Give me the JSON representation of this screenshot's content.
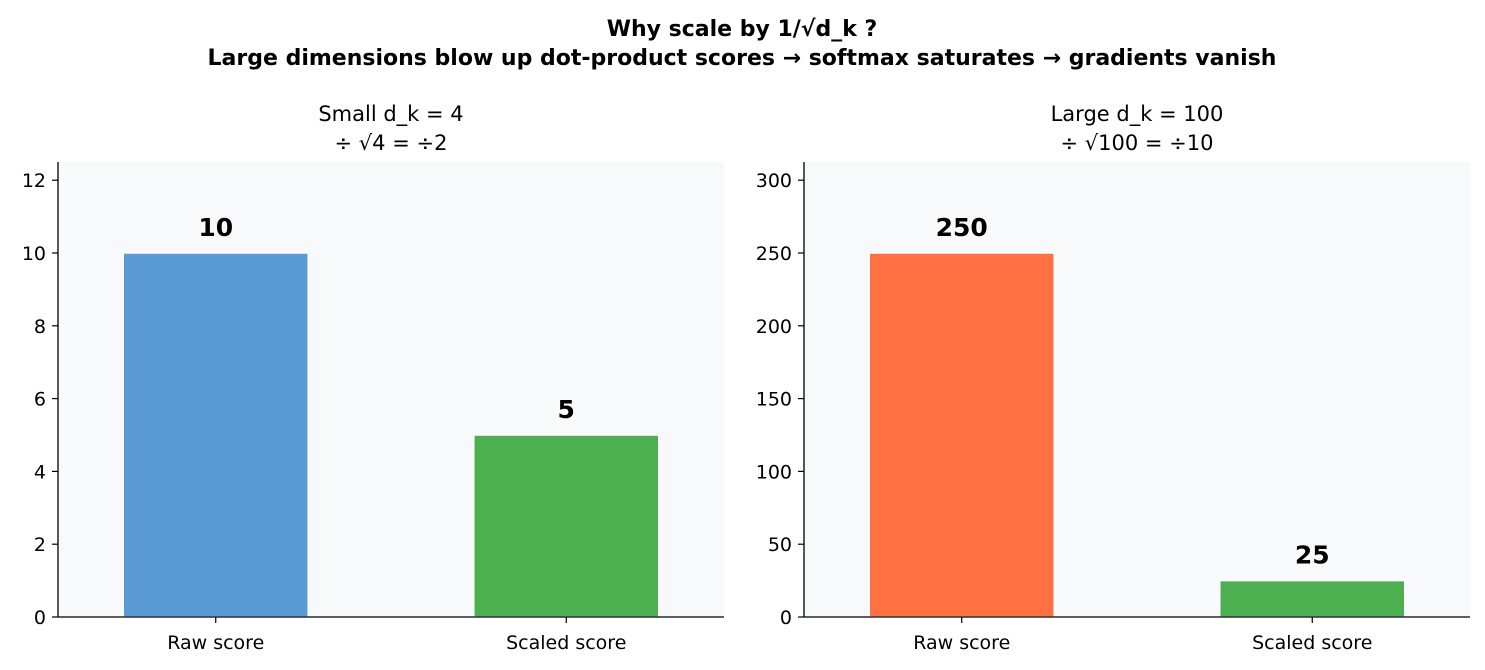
{
  "figure": {
    "title_line1": "Why scale by 1/√d_k ?",
    "title_line2": "Large dimensions blow up dot-product scores → softmax saturates → gradients vanish"
  },
  "chart_data": [
    {
      "type": "bar",
      "title_line1": "Small  d_k = 4",
      "title_line2": "÷ √4 = ÷2",
      "categories": [
        "Raw score",
        "Scaled score"
      ],
      "values": [
        10,
        5
      ],
      "value_labels": [
        "10",
        "5"
      ],
      "colors": [
        "#5b9bd5",
        "#4caf50"
      ],
      "ylim": [
        0,
        12.5
      ],
      "yticks": [
        0,
        2,
        4,
        6,
        8,
        10,
        12
      ],
      "grid": false,
      "background": "#f7f9fb"
    },
    {
      "type": "bar",
      "title_line1": "Large  d_k = 100",
      "title_line2": "÷ √100 = ÷10",
      "categories": [
        "Raw score",
        "Scaled score"
      ],
      "values": [
        250,
        25
      ],
      "value_labels": [
        "250",
        "25"
      ],
      "colors": [
        "#ff7043",
        "#4caf50"
      ],
      "ylim": [
        0,
        312.5
      ],
      "yticks": [
        0,
        50,
        100,
        150,
        200,
        250,
        300
      ],
      "grid": false,
      "background": "#f7f9fb"
    }
  ]
}
